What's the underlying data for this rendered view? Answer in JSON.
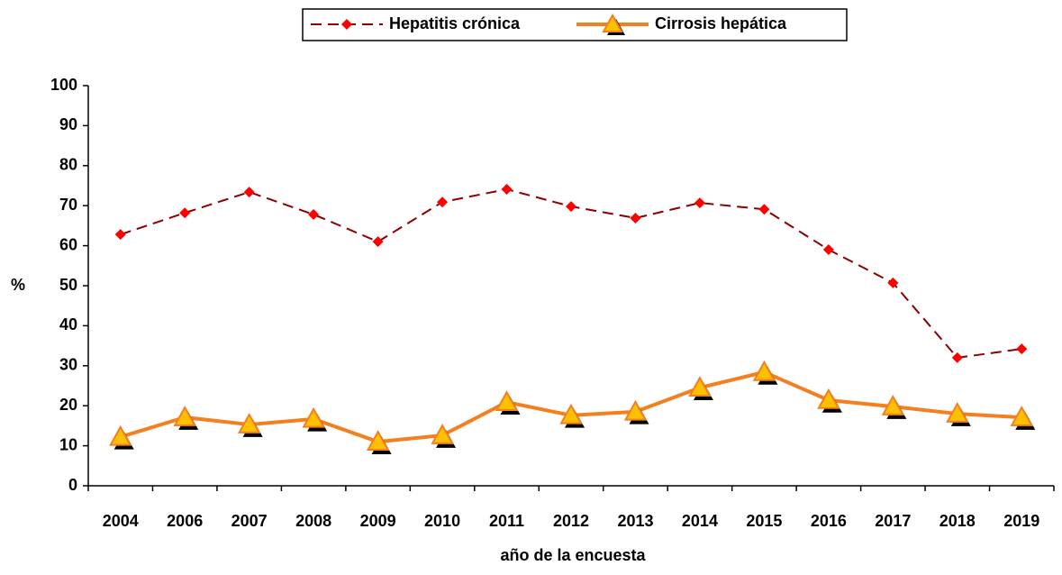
{
  "chart_data": {
    "type": "line",
    "categories": [
      "2004",
      "2006",
      "2007",
      "2008",
      "2009",
      "2010",
      "2011",
      "2012",
      "2013",
      "2014",
      "2015",
      "2016",
      "2017",
      "2018",
      "2019"
    ],
    "series": [
      {
        "name": "Hepatitis crónica",
        "color": "#ff0000",
        "values": [
          62.8,
          68.2,
          73.4,
          67.8,
          61.0,
          70.9,
          74.1,
          69.8,
          66.9,
          70.7,
          69.1,
          59.0,
          50.7,
          32.0,
          34.2
        ]
      },
      {
        "name": "Cirrosis hepática",
        "color": "#f47f1f",
        "values": [
          12.2,
          17.1,
          15.3,
          16.7,
          11.0,
          12.6,
          20.9,
          17.6,
          18.5,
          24.5,
          28.4,
          21.4,
          19.8,
          18.0,
          17.1
        ]
      }
    ],
    "ylim": [
      0,
      100
    ],
    "yticks": [
      0,
      10,
      20,
      30,
      40,
      50,
      60,
      70,
      80,
      90,
      100
    ],
    "y_label": "%",
    "x_label": "año de la encuesta",
    "legend": "top"
  }
}
